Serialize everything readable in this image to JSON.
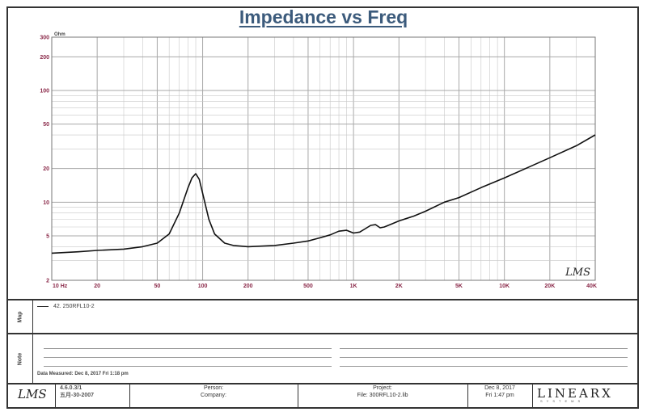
{
  "chart_data": {
    "type": "line",
    "title": "Impedance vs Freq",
    "ylabel": "Ohm",
    "xlabel": "",
    "x_scale": "log",
    "y_scale": "log",
    "xlim": [
      10,
      40000
    ],
    "ylim": [
      2,
      300
    ],
    "x_ticks": [
      {
        "v": 10,
        "label": "10 Hz"
      },
      {
        "v": 20,
        "label": "20"
      },
      {
        "v": 50,
        "label": "50"
      },
      {
        "v": 100,
        "label": "100"
      },
      {
        "v": 200,
        "label": "200"
      },
      {
        "v": 500,
        "label": "500"
      },
      {
        "v": 1000,
        "label": "1K"
      },
      {
        "v": 2000,
        "label": "2K"
      },
      {
        "v": 5000,
        "label": "5K"
      },
      {
        "v": 10000,
        "label": "10K"
      },
      {
        "v": 20000,
        "label": "20K"
      },
      {
        "v": 40000,
        "label": "40K"
      }
    ],
    "y_ticks": [
      {
        "v": 2,
        "label": "2"
      },
      {
        "v": 5,
        "label": "5"
      },
      {
        "v": 10,
        "label": "10"
      },
      {
        "v": 20,
        "label": "20"
      },
      {
        "v": 50,
        "label": "50"
      },
      {
        "v": 100,
        "label": "100"
      },
      {
        "v": 200,
        "label": "200"
      },
      {
        "v": 300,
        "label": "300"
      }
    ],
    "grid": true,
    "series": [
      {
        "name": "42. 250RFL10-2",
        "x": [
          10,
          15,
          20,
          30,
          40,
          50,
          60,
          70,
          80,
          85,
          90,
          95,
          100,
          110,
          120,
          140,
          160,
          200,
          300,
          400,
          500,
          600,
          700,
          800,
          900,
          1000,
          1100,
          1200,
          1300,
          1400,
          1500,
          1600,
          1800,
          2000,
          2500,
          3000,
          4000,
          5000,
          7000,
          10000,
          15000,
          20000,
          30000,
          40000
        ],
        "y": [
          3.5,
          3.6,
          3.7,
          3.8,
          4.0,
          4.3,
          5.2,
          8.0,
          13.5,
          16.5,
          18.0,
          16.0,
          12.0,
          7.0,
          5.2,
          4.3,
          4.1,
          4.0,
          4.1,
          4.3,
          4.5,
          4.8,
          5.1,
          5.5,
          5.6,
          5.3,
          5.4,
          5.8,
          6.2,
          6.3,
          5.9,
          6.0,
          6.4,
          6.8,
          7.5,
          8.3,
          10.0,
          11.0,
          13.5,
          16.5,
          21.0,
          25.0,
          32.0,
          40.0
        ]
      }
    ]
  },
  "watermark": "LMS",
  "sections": {
    "map_label": "Map",
    "note_label": "Note"
  },
  "legend": {
    "entry": "42. 250RFL10-2"
  },
  "date_measured": "Data Measured: Dec 8, 2017  Fri  1:18 pm",
  "footer": {
    "logo": "LMS",
    "version": "4.6.0.3/1",
    "version_date": "五月-30-2007",
    "person_label": "Person:",
    "company_label": "Company:",
    "project_label": "Project:",
    "file_label": "File: 300RFL10-2.lib",
    "date": "Dec 8, 2017",
    "time": "Fri  1:47 pm",
    "brand": "LINEARX",
    "brand_sub": "SYSTEMS"
  },
  "colors": {
    "title": "#3c5b7c",
    "tick_label": "#8b2a4a",
    "grid": "#c8c8c8",
    "curve": "#111111"
  }
}
